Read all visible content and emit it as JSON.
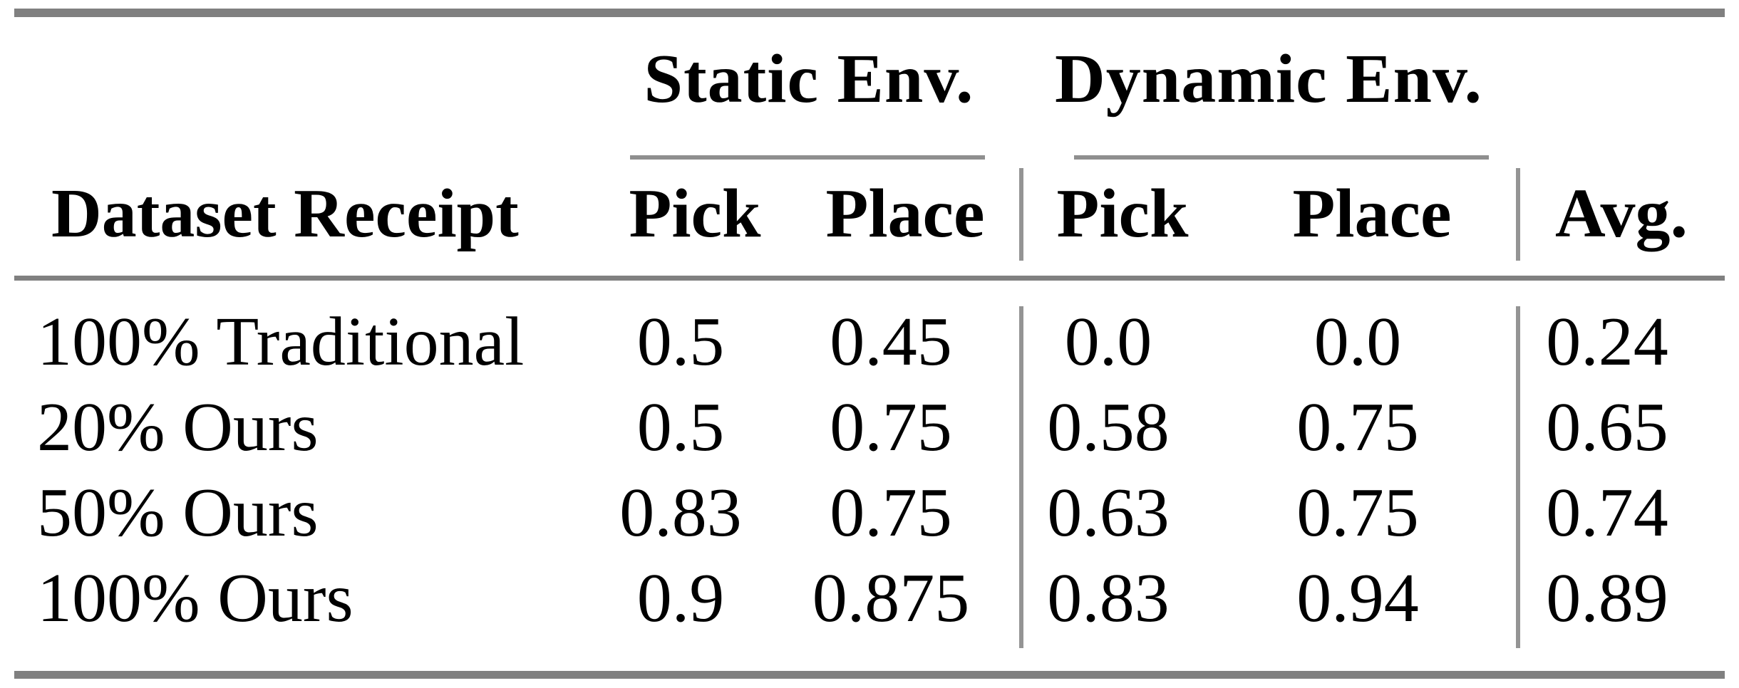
{
  "table": {
    "group_headers": {
      "static": "Static Env.",
      "dynamic": "Dynamic Env."
    },
    "columns": {
      "row_label": "Dataset Receipt",
      "static_pick": "Pick",
      "static_place": "Place",
      "dynamic_pick": "Pick",
      "dynamic_place": "Place",
      "avg": "Avg."
    },
    "rows": [
      {
        "label": "100% Traditional",
        "static_pick": "0.5",
        "static_place": "0.45",
        "dynamic_pick": "0.0",
        "dynamic_place": "0.0",
        "avg": "0.24"
      },
      {
        "label": "20% Ours",
        "static_pick": "0.5",
        "static_place": "0.75",
        "dynamic_pick": "0.58",
        "dynamic_place": "0.75",
        "avg": "0.65"
      },
      {
        "label": "50% Ours",
        "static_pick": "0.83",
        "static_place": "0.75",
        "dynamic_pick": "0.63",
        "dynamic_place": "0.75",
        "avg": "0.74"
      },
      {
        "label": "100% Ours",
        "static_pick": "0.9",
        "static_place": "0.875",
        "dynamic_pick": "0.83",
        "dynamic_place": "0.94",
        "avg": "0.89"
      }
    ],
    "colors": {
      "rule_heavy": "#808080",
      "rule_light": "#8f8f8f",
      "text": "#000000",
      "background": "#ffffff"
    }
  },
  "chart_data": {
    "type": "table",
    "title": "",
    "categories": [
      "100% Traditional",
      "20% Ours",
      "50% Ours",
      "100% Ours"
    ],
    "series": [
      {
        "name": "Static Env. Pick",
        "values": [
          0.5,
          0.5,
          0.83,
          0.9
        ]
      },
      {
        "name": "Static Env. Place",
        "values": [
          0.45,
          0.75,
          0.75,
          0.875
        ]
      },
      {
        "name": "Dynamic Env. Pick",
        "values": [
          0.0,
          0.58,
          0.63,
          0.83
        ]
      },
      {
        "name": "Dynamic Env. Place",
        "values": [
          0.0,
          0.75,
          0.75,
          0.94
        ]
      },
      {
        "name": "Avg.",
        "values": [
          0.24,
          0.65,
          0.74,
          0.89
        ]
      }
    ]
  }
}
